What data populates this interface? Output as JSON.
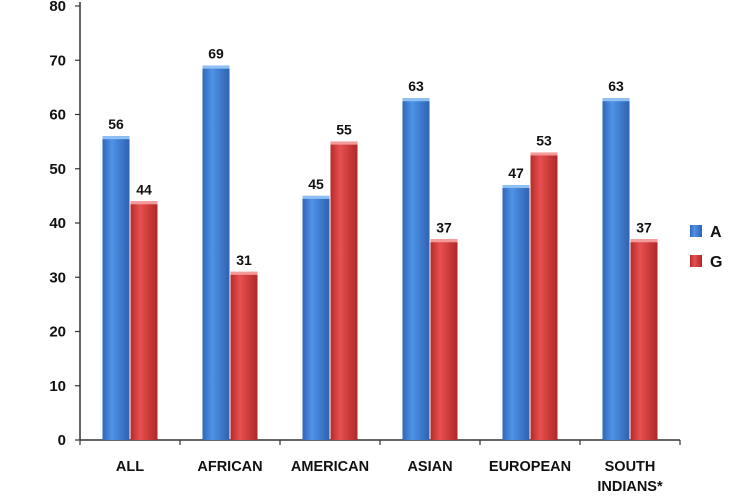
{
  "chart_data": {
    "type": "bar",
    "categories": [
      "ALL",
      "AFRICAN",
      "AMERICAN",
      "ASIAN",
      "EUROPEAN",
      [
        "SOUTH",
        "INDIANS*"
      ]
    ],
    "series": [
      {
        "name": "A",
        "values": [
          56,
          69,
          45,
          63,
          47,
          63
        ],
        "color": "#3d7fd6"
      },
      {
        "name": "G",
        "values": [
          44,
          31,
          55,
          37,
          53,
          37
        ],
        "color": "#d63a3a"
      }
    ],
    "title": "",
    "xlabel": "",
    "ylabel": "",
    "ylim": [
      0,
      80
    ],
    "yticks": [
      0,
      10,
      20,
      30,
      40,
      50,
      60,
      70,
      80
    ],
    "grid": false,
    "legend_position": "right"
  }
}
